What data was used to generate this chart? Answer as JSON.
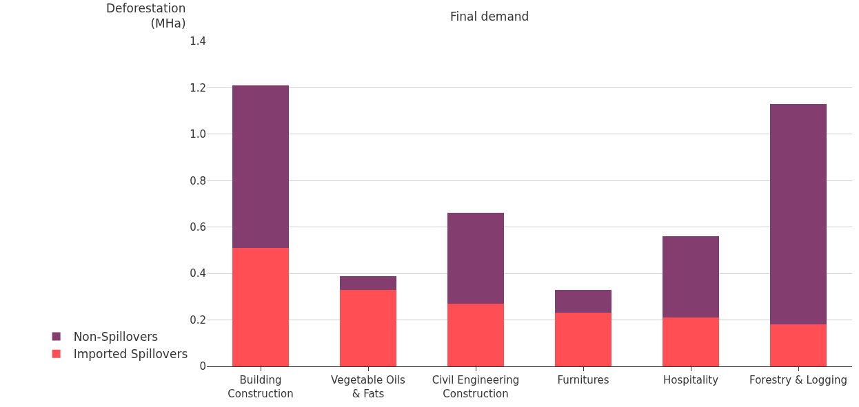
{
  "chart_data": {
    "type": "bar",
    "title": "Final demand",
    "ylabel": "Deforestation\n(MHa)",
    "categories": [
      "Building\nConstruction",
      "Vegetable Oils\n& Fats",
      "Civil Engineering\nConstruction",
      "Furnitures",
      "Hospitality",
      "Forestry & Logging"
    ],
    "series": [
      {
        "name": "Imported Spillovers",
        "color": "#ff4f55",
        "values": [
          0.51,
          0.33,
          0.27,
          0.23,
          0.21,
          0.18
        ]
      },
      {
        "name": "Non-Spillovers",
        "color": "#833d6e",
        "values": [
          0.7,
          0.06,
          0.39,
          0.1,
          0.35,
          0.95
        ]
      }
    ],
    "stacked": true,
    "ylim": [
      0,
      1.4
    ],
    "yticks": [
      0,
      0.2,
      0.4,
      0.6,
      0.8,
      {
        "value": 1.0,
        "label": "1.0"
      },
      1.2,
      1.4
    ],
    "grid": "y",
    "legend": "bottom left"
  }
}
